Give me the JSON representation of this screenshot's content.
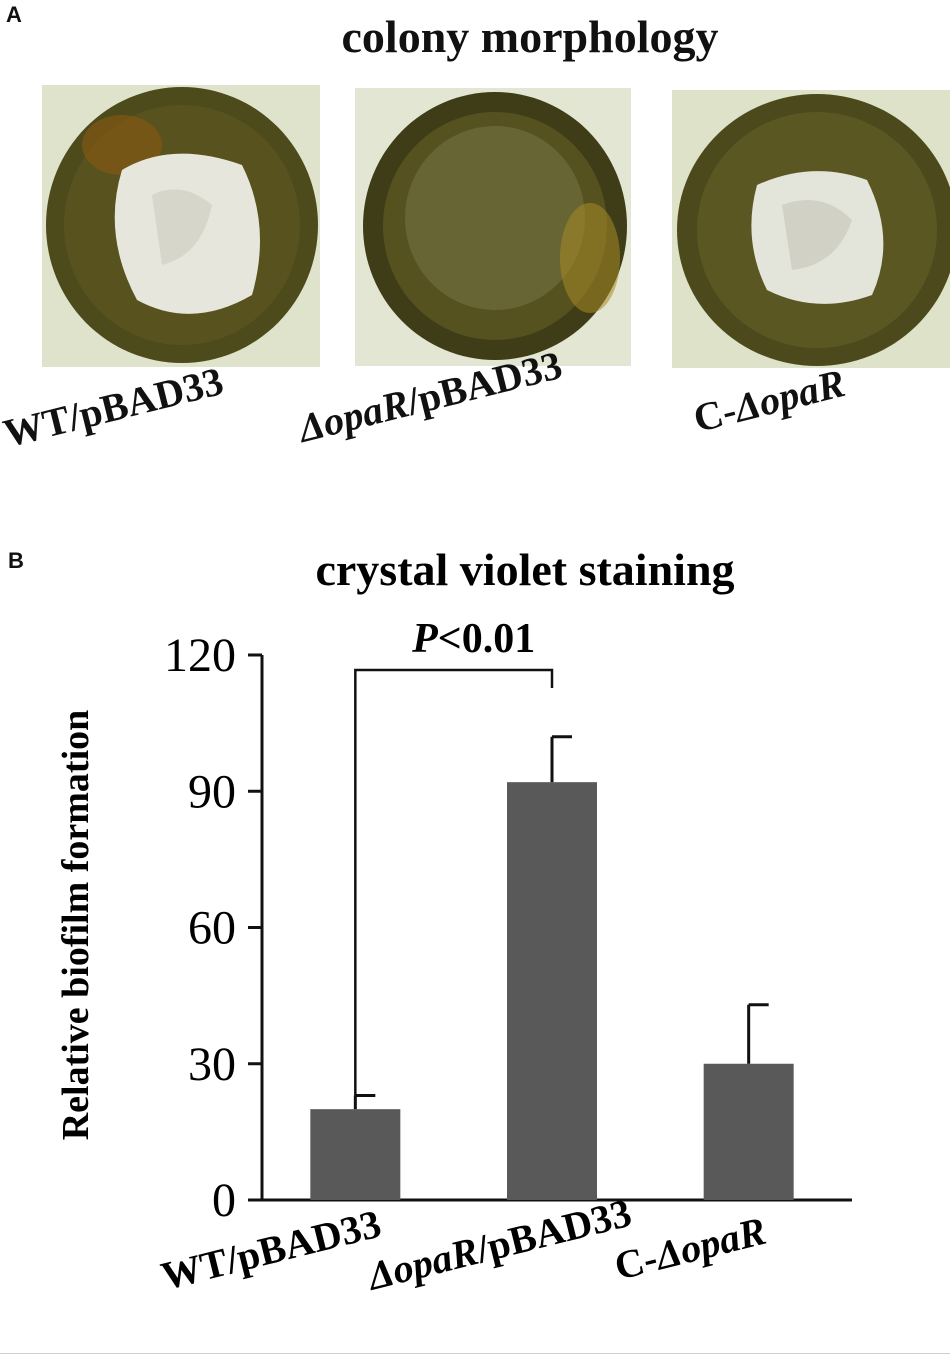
{
  "panel_a": {
    "letter": "A",
    "title": "colony morphology",
    "images": [
      {
        "label_prefix": "",
        "label_italic": "",
        "label_suffix": "WT/pBAD33"
      },
      {
        "label_prefix": "",
        "label_italic": "ΔopaR",
        "label_suffix": "/pBAD33"
      },
      {
        "label_prefix": "C-",
        "label_italic": "ΔopaR",
        "label_suffix": ""
      }
    ],
    "colors": {
      "agar": "#4a4a1a",
      "colony_center": "#e8e8e0",
      "rim": "#6b5a18"
    }
  },
  "panel_b": {
    "letter": "B",
    "significance": {
      "italic": "P",
      "text": "<0.01"
    }
  },
  "chart_data": {
    "type": "bar",
    "title": "crystal violet staining",
    "ylabel": "Relative biofilm formation",
    "xlabel": "",
    "ylim": [
      0,
      120
    ],
    "yticks": [
      0,
      30,
      60,
      90,
      120
    ],
    "categories": [
      {
        "prefix": "",
        "italic": "",
        "suffix": "WT/pBAD33"
      },
      {
        "prefix": "",
        "italic": "ΔopaR",
        "suffix": "/pBAD33"
      },
      {
        "prefix": "C-",
        "italic": "ΔopaR",
        "suffix": ""
      }
    ],
    "values": [
      20,
      92,
      30
    ],
    "errors": [
      3,
      10,
      13
    ],
    "bar_color": "#595959",
    "grid": false,
    "comparison": {
      "between": [
        0,
        1
      ],
      "label": "P<0.01"
    }
  }
}
